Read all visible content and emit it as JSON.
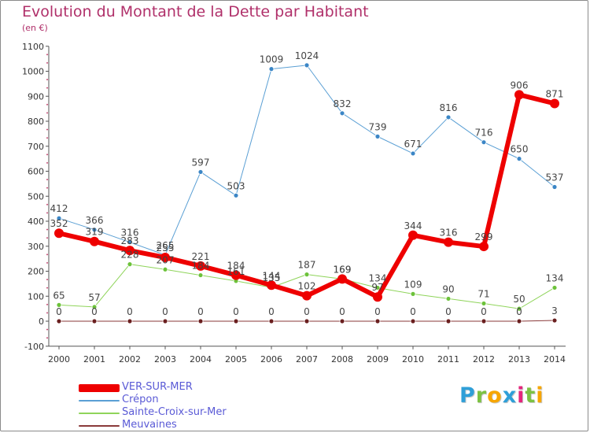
{
  "chart_data": {
    "type": "line",
    "title": "Evolution du Montant de la Dette par Habitant",
    "subtitle": "(en €)",
    "xlabel": "",
    "ylabel": "",
    "x": [
      "2000",
      "2001",
      "2002",
      "2003",
      "2004",
      "2005",
      "2006",
      "2007",
      "2008",
      "2009",
      "2010",
      "2011",
      "2012",
      "2013",
      "2014"
    ],
    "ylim": [
      -100,
      1100
    ],
    "yticks": [
      "-100",
      "0",
      "100",
      "200",
      "300",
      "400",
      "500",
      "600",
      "700",
      "800",
      "900",
      "1000",
      "1100"
    ],
    "grid": false,
    "legend": "bottom-left",
    "series": [
      {
        "name": "VER-SUR-MER",
        "color": "#ee0000",
        "values": [
          352,
          319,
          283,
          255,
          221,
          184,
          144,
          102,
          169,
          97,
          344,
          316,
          299,
          906,
          871
        ],
        "labels": [
          "352",
          "319",
          "283",
          "255",
          "221",
          "184",
          "144",
          "102",
          "169",
          "97",
          "344",
          "316",
          "299",
          "906",
          "871"
        ]
      },
      {
        "name": "Crépon",
        "color": "#5a9fd4",
        "values": [
          412,
          366,
          316,
          265,
          597,
          503,
          1009,
          1024,
          832,
          739,
          671,
          816,
          716,
          650,
          537
        ],
        "labels": [
          "412",
          "366",
          "316",
          "265",
          "597",
          "503",
          "1009",
          "1024",
          "832",
          "739",
          "671",
          "816",
          "716",
          "650",
          "537"
        ]
      },
      {
        "name": "Sainte-Croix-sur-Mer",
        "color": "#8fd45a",
        "values": [
          65,
          57,
          228,
          207,
          184,
          161,
          135,
          187,
          169,
          134,
          109,
          90,
          71,
          50,
          134
        ],
        "labels": [
          "65",
          "57",
          "228",
          "207",
          "184",
          "161",
          "135",
          "187",
          "169",
          "134",
          "109",
          "90",
          "71",
          "50",
          "134"
        ]
      },
      {
        "name": "Meuvaines",
        "color": "#8a3a3a",
        "values": [
          0,
          0,
          0,
          0,
          0,
          0,
          0,
          0,
          0,
          0,
          0,
          0,
          0,
          0,
          3
        ],
        "labels": [
          "0",
          "0",
          "0",
          "0",
          "0",
          "0",
          "0",
          "0",
          "0",
          "0",
          "0",
          "0",
          "0",
          "0",
          "3"
        ]
      }
    ]
  },
  "brand": {
    "letters": [
      {
        "ch": "P",
        "color": "#2f9fd8"
      },
      {
        "ch": "r",
        "color": "#7cc242"
      },
      {
        "ch": "o",
        "color": "#f7a600"
      },
      {
        "ch": "x",
        "color": "#2f9fd8"
      },
      {
        "ch": "i",
        "color": "#e4267c"
      },
      {
        "ch": "t",
        "color": "#7cc242"
      },
      {
        "ch": "i",
        "color": "#f7a600"
      }
    ]
  }
}
